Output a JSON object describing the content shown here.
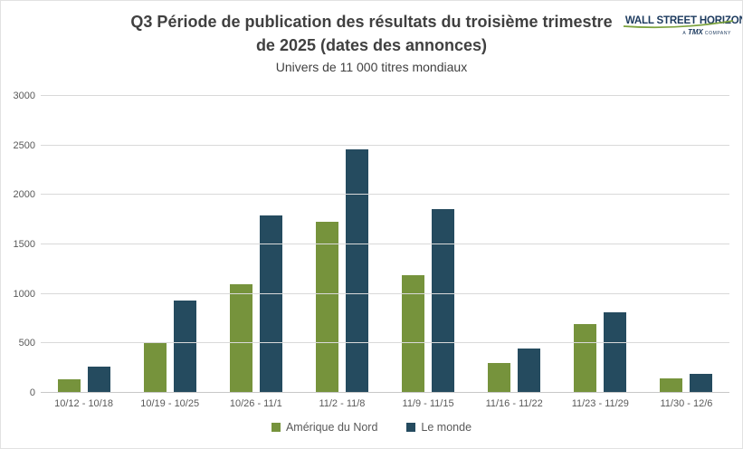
{
  "header": {
    "title": "Q3 Période de publication des résultats du troisième trimestre de 2025 (dates des annonces)",
    "subtitle": "Univers de 11 000 titres mondiaux"
  },
  "logo": {
    "brand": "WALL STREET HORIZON",
    "tagline_a": "A ",
    "tagline_tmx": "TMX",
    "tagline_company": " COMPANY"
  },
  "chart_data": {
    "type": "bar",
    "title": "Q3 Période de publication des résultats du troisième trimestre de 2025 (dates des annonces)",
    "subtitle": "Univers de 11 000 titres mondiaux",
    "categories": [
      "10/12 - 10/18",
      "10/19 - 10/25",
      "10/26 - 11/1",
      "11/2 - 11/8",
      "11/9 - 11/15",
      "11/16 - 11/22",
      "11/23 - 11/29",
      "11/30 - 12/6"
    ],
    "series": [
      {
        "name": "Amérique du Nord",
        "color": "#76933C",
        "values": [
          140,
          510,
          1095,
          1725,
          1190,
          300,
          695,
          150
        ]
      },
      {
        "name": "Le monde",
        "color": "#254B5F",
        "values": [
          265,
          935,
          1790,
          2460,
          1855,
          450,
          815,
          190
        ]
      }
    ],
    "ylim": [
      0,
      3000
    ],
    "yticks": [
      0,
      500,
      1000,
      1500,
      2000,
      2500,
      3000
    ],
    "grid": true,
    "legend_position": "bottom"
  },
  "colors": {
    "gridline": "#d9d9d9",
    "axis_text": "#595959",
    "title_text": "#404040",
    "logo_navy": "#1c3a5e",
    "logo_green": "#7ca23d"
  }
}
